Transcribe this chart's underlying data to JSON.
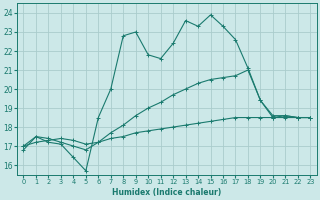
{
  "xlabel": "Humidex (Indice chaleur)",
  "background_color": "#cce8e8",
  "grid_color": "#aacccc",
  "line_color": "#1a7a6e",
  "xlim": [
    -0.5,
    23.5
  ],
  "ylim": [
    15.5,
    24.5
  ],
  "xticks": [
    0,
    1,
    2,
    3,
    4,
    5,
    6,
    7,
    8,
    9,
    10,
    11,
    12,
    13,
    14,
    15,
    16,
    17,
    18,
    19,
    20,
    21,
    22,
    23
  ],
  "yticks": [
    16,
    17,
    18,
    19,
    20,
    21,
    22,
    23,
    24
  ],
  "lines": [
    {
      "x": [
        0,
        1,
        2,
        3,
        4,
        5,
        6,
        7,
        8,
        9,
        10,
        11,
        12,
        13,
        14,
        15,
        16,
        17,
        18,
        19,
        20,
        21,
        22,
        23
      ],
      "y": [
        16.8,
        17.5,
        17.2,
        17.1,
        16.4,
        15.7,
        18.5,
        20.0,
        22.8,
        23.0,
        21.8,
        21.6,
        22.4,
        23.6,
        23.3,
        23.9,
        23.3,
        22.6,
        21.1,
        19.4,
        18.5,
        18.6,
        18.5,
        18.5
      ]
    },
    {
      "x": [
        0,
        1,
        2,
        3,
        4,
        5,
        6,
        7,
        8,
        9,
        10,
        11,
        12,
        13,
        14,
        15,
        16,
        17,
        18,
        19,
        20,
        21,
        22,
        23
      ],
      "y": [
        17.0,
        17.5,
        17.4,
        17.2,
        17.0,
        16.8,
        17.2,
        17.7,
        18.1,
        18.6,
        19.0,
        19.3,
        19.7,
        20.0,
        20.3,
        20.5,
        20.6,
        20.7,
        21.0,
        19.4,
        18.6,
        18.6,
        18.5,
        18.5
      ]
    },
    {
      "x": [
        0,
        1,
        2,
        3,
        4,
        5,
        6,
        7,
        8,
        9,
        10,
        11,
        12,
        13,
        14,
        15,
        16,
        17,
        18,
        19,
        20,
        21,
        22,
        23
      ],
      "y": [
        17.0,
        17.2,
        17.3,
        17.4,
        17.3,
        17.1,
        17.2,
        17.4,
        17.5,
        17.7,
        17.8,
        17.9,
        18.0,
        18.1,
        18.2,
        18.3,
        18.4,
        18.5,
        18.5,
        18.5,
        18.5,
        18.5,
        18.5,
        18.5
      ]
    }
  ]
}
